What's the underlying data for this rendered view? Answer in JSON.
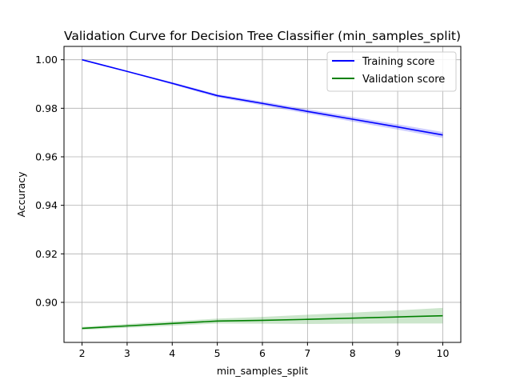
{
  "chart_data": {
    "type": "line",
    "title": "Validation Curve for Decision Tree Classifier (min_samples_split)",
    "xlabel": "min_samples_split",
    "ylabel": "Accuracy",
    "x": [
      2,
      3,
      4,
      5,
      6,
      7,
      8,
      9,
      10
    ],
    "xlim": [
      1.6,
      10.4
    ],
    "ylim": [
      0.8835,
      1.0055
    ],
    "x_ticks": [
      2,
      3,
      4,
      5,
      6,
      7,
      8,
      9,
      10
    ],
    "y_ticks": [
      0.9,
      0.92,
      0.94,
      0.96,
      0.98,
      1.0
    ],
    "y_tick_labels": [
      "0.90",
      "0.92",
      "0.94",
      "0.96",
      "0.98",
      "1.00"
    ],
    "grid": true,
    "legend_position": "top-right",
    "series": [
      {
        "name": "Training score",
        "color": "#0000ff",
        "values": [
          1.0,
          0.9952,
          0.9903,
          0.9852,
          0.982,
          0.9787,
          0.9755,
          0.9723,
          0.969
        ],
        "band_lower": [
          1.0,
          0.995,
          0.9898,
          0.9845,
          0.9812,
          0.9778,
          0.9745,
          0.9712,
          0.9678
        ],
        "band_upper": [
          1.0,
          0.9954,
          0.9908,
          0.9858,
          0.9828,
          0.9796,
          0.9765,
          0.9734,
          0.9702
        ]
      },
      {
        "name": "Validation score",
        "color": "#008000",
        "values": [
          0.8893,
          0.8903,
          0.8913,
          0.8923,
          0.8926,
          0.893,
          0.8935,
          0.894,
          0.8945
        ],
        "band_lower": [
          0.8887,
          0.8895,
          0.8904,
          0.8913,
          0.8912,
          0.8911,
          0.8912,
          0.8913,
          0.8913
        ],
        "band_upper": [
          0.8899,
          0.8911,
          0.8922,
          0.8933,
          0.894,
          0.8949,
          0.8958,
          0.8967,
          0.8977
        ]
      }
    ]
  }
}
